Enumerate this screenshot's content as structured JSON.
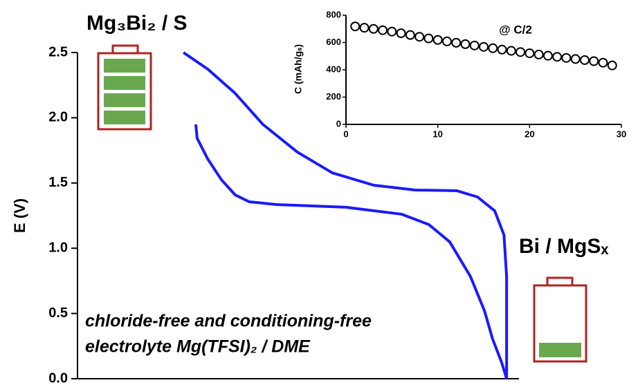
{
  "chart_data": [
    {
      "type": "line",
      "ylabel": "E (V)",
      "labels": [
        "Mg₃Bi₂ / S",
        "Bi / MgSₓ"
      ],
      "annotation": [
        "chloride-free and conditioning-free",
        "electrolyte Mg(TFSI)₂ / DME"
      ],
      "xlim": [
        0,
        1
      ],
      "ylim": [
        0,
        2.5
      ],
      "yticks": [
        {
          "value": 0,
          "label": "0.0"
        },
        {
          "value": 0.5,
          "label": "0.5"
        },
        {
          "value": 1,
          "label": "1.0"
        },
        {
          "value": 1.5,
          "label": "1.5"
        },
        {
          "value": 2,
          "label": "2.0"
        },
        {
          "value": 2.5,
          "label": "2.5"
        }
      ],
      "series": [
        {
          "color": "#1a1aff",
          "x": [
            0.24,
            0.295,
            0.357,
            0.42,
            0.498,
            0.577,
            0.671,
            0.765,
            0.859,
            0.906,
            0.945,
            0.966,
            0.972,
            0.972
          ],
          "values": [
            2.5,
            2.373,
            2.188,
            1.949,
            1.737,
            1.578,
            1.483,
            1.446,
            1.441,
            1.393,
            1.287,
            1.102,
            0.784,
            0
          ]
        },
        {
          "color": "#1a1aff",
          "x": [
            0.268,
            0.271,
            0.295,
            0.326,
            0.357,
            0.389,
            0.451,
            0.608,
            0.734,
            0.796,
            0.843,
            0.89,
            0.922,
            0.94,
            0.961,
            0.972
          ],
          "values": [
            1.949,
            1.843,
            1.684,
            1.525,
            1.409,
            1.356,
            1.335,
            1.314,
            1.261,
            1.181,
            1.049,
            0.784,
            0.519,
            0.307,
            0.122,
            0
          ]
        }
      ]
    },
    {
      "type": "scatter",
      "title": "@ C/2",
      "ylabel": "C (mAh/gₛ)",
      "xlim": [
        0,
        30
      ],
      "xticks": [
        0,
        10,
        20,
        30
      ],
      "ylim": [
        0,
        800
      ],
      "yticks": [
        0,
        200,
        400,
        600,
        800
      ],
      "x": [
        1,
        2,
        3,
        4,
        5,
        6,
        7,
        8,
        9,
        10,
        11,
        12,
        13,
        14,
        15,
        16,
        17,
        18,
        19,
        20,
        21,
        22,
        23,
        24,
        25,
        26,
        27,
        28,
        29
      ],
      "values": [
        718,
        708,
        700,
        690,
        680,
        668,
        655,
        642,
        630,
        619,
        608,
        598,
        588,
        578,
        568,
        558,
        548,
        539,
        530,
        521,
        512,
        503,
        495,
        487,
        479,
        471,
        463,
        452,
        432
      ]
    }
  ]
}
